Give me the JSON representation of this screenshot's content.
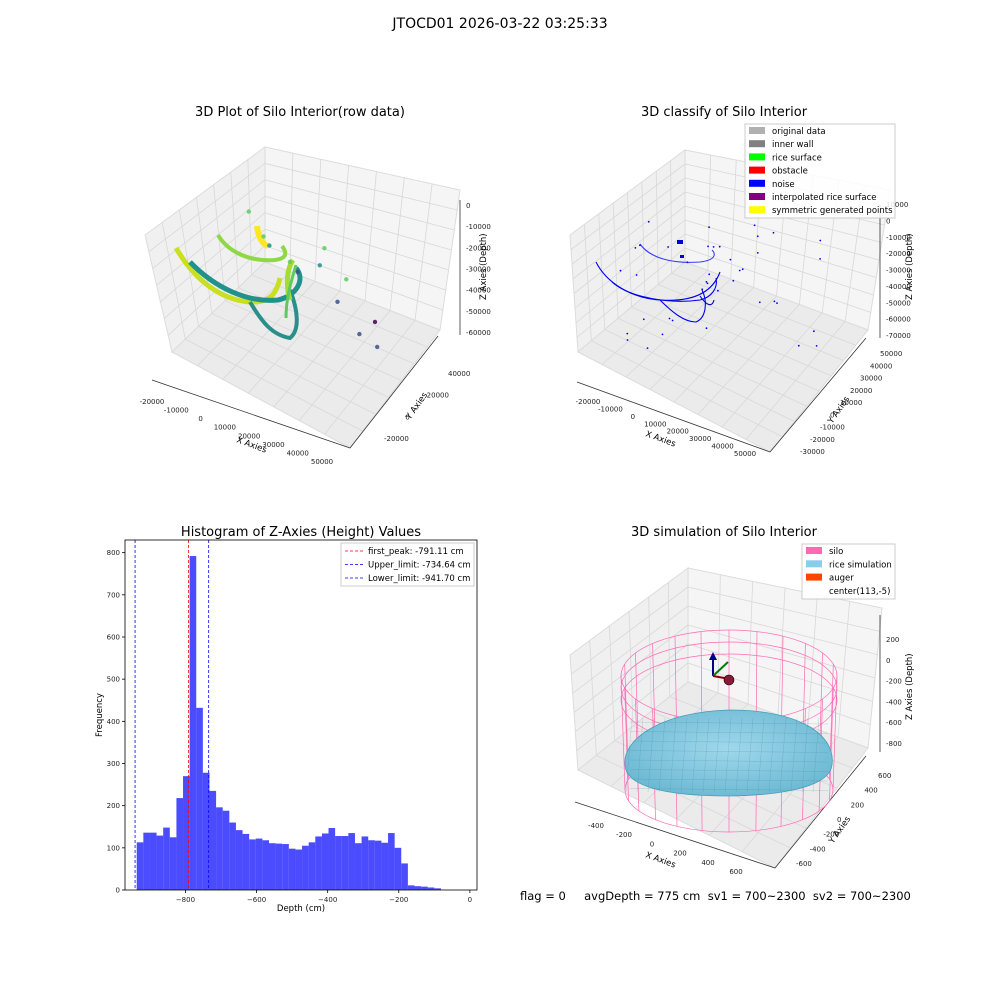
{
  "figure": {
    "suptitle": "JTOCD01 2026-03-22 03:25:33",
    "footer": "flag = 0     avgDepth = 775 cm  sv1 = 700~2300  sv2 = 700~2300"
  },
  "chart_data": [
    {
      "type": "scatter3d",
      "title": "3D Plot of Silo Interior(row data)",
      "xlabel": "X Axies",
      "ylabel": "Y Axies",
      "zlabel": "Z Axies (Depth)",
      "xticks": [
        "-20000",
        "-10000",
        "0",
        "10000",
        "20000",
        "30000",
        "40000",
        "50000"
      ],
      "yticks": [
        "-20000",
        "0",
        "20000",
        "40000"
      ],
      "zticks": [
        "0",
        "-10000",
        "-20000",
        "-30000",
        "-40000",
        "-50000",
        "-60000"
      ],
      "xlim": [
        -25000,
        55000
      ],
      "ylim": [
        -30000,
        50000
      ],
      "zlim": [
        -65000,
        3000
      ],
      "colormap": "viridis",
      "points": [
        {
          "x": -18000,
          "y": -5000,
          "z": -14000
        },
        {
          "x": -10000,
          "y": -8000,
          "z": -30000
        },
        {
          "x": 2000,
          "y": -10000,
          "z": -40000
        },
        {
          "x": 14000,
          "y": -6000,
          "z": -30000
        },
        {
          "x": 20000,
          "y": 2000,
          "z": -15000
        },
        {
          "x": -2000,
          "y": 14000,
          "z": -12000
        },
        {
          "x": 12000,
          "y": 18000,
          "z": -18000
        },
        {
          "x": 25000,
          "y": 0,
          "z": -42000
        },
        {
          "x": 35000,
          "y": 0,
          "z": -55000
        },
        {
          "x": 48000,
          "y": 10000,
          "z": -52000
        },
        {
          "x": 46000,
          "y": 35000,
          "z": -6000
        },
        {
          "x": 30000,
          "y": -25000,
          "z": -62000
        }
      ]
    },
    {
      "type": "scatter3d",
      "title": "3D classify of Silo Interior",
      "xlabel": "X Axies",
      "ylabel": "Y Axies",
      "zlabel": "Z Axies (Depth)",
      "xticks": [
        "-20000",
        "-10000",
        "0",
        "10000",
        "20000",
        "30000",
        "40000",
        "50000"
      ],
      "yticks": [
        "-30000",
        "-20000",
        "-10000",
        "0",
        "10000",
        "20000",
        "30000",
        "40000",
        "50000"
      ],
      "zticks": [
        "10000",
        "0",
        "-10000",
        "-20000",
        "-30000",
        "-40000",
        "-50000",
        "-60000",
        "-70000"
      ],
      "legend": [
        {
          "name": "original data",
          "color": "#b0b0b0"
        },
        {
          "name": "inner wall",
          "color": "#808080"
        },
        {
          "name": "rice surface",
          "color": "#00ff00"
        },
        {
          "name": "obstacle",
          "color": "#ff0000"
        },
        {
          "name": "noise",
          "color": "#0000ff"
        },
        {
          "name": "interpolated rice surface",
          "color": "#800080"
        },
        {
          "name": "symmetric generated points",
          "color": "#ffff00"
        }
      ],
      "legend_loc": "upper right",
      "series_color": "#0000ff"
    },
    {
      "type": "bar",
      "title": "Histogram of Z-Axies (Height) Values",
      "xlabel": "Depth (cm)",
      "ylabel": "Frequency",
      "xlim": [
        -970,
        20
      ],
      "ylim": [
        0,
        830
      ],
      "xticks": [
        -800,
        -600,
        -400,
        -200,
        0
      ],
      "yticks": [
        0,
        100,
        200,
        300,
        400,
        500,
        600,
        700,
        800
      ],
      "bin_start": -937,
      "bin_width": 18.6,
      "values": [
        113,
        136,
        136,
        129,
        148,
        125,
        218,
        270,
        792,
        432,
        278,
        235,
        196,
        188,
        160,
        142,
        133,
        120,
        122,
        118,
        111,
        110,
        109,
        98,
        96,
        105,
        113,
        127,
        134,
        147,
        128,
        128,
        135,
        111,
        127,
        118,
        117,
        112,
        135,
        100,
        63,
        11,
        9,
        8,
        6,
        4
      ],
      "bar_color": "#0000ff",
      "bar_alpha": 0.7,
      "vlines": [
        {
          "label": "first_peak: -791.11 cm",
          "x": -791.11,
          "color": "#ff0000"
        },
        {
          "label": "Upper_limit: -734.64 cm",
          "x": -734.64,
          "color": "#0000ff"
        },
        {
          "label": "Lower_limit: -941.70 cm",
          "x": -941.7,
          "color": "#0000ff"
        }
      ],
      "legend_loc": "upper right"
    },
    {
      "type": "surface3d",
      "title": "3D simulation of Silo Interior",
      "xlabel": "X Axies",
      "ylabel": "Y Axies",
      "zlabel": "Z Axies (Depth)",
      "xticks": [
        "-400",
        "-200",
        "0",
        "200",
        "400",
        "600"
      ],
      "yticks": [
        "-600",
        "-400",
        "-200",
        "0",
        "200",
        "400",
        "600"
      ],
      "zticks": [
        "200",
        "0",
        "-200",
        "-400",
        "-600",
        "-800"
      ],
      "legend": [
        {
          "name": "silo",
          "color": "#ff69b4"
        },
        {
          "name": "rice simulation",
          "color": "#87ceeb"
        },
        {
          "name": "auger",
          "color": "#ff4500"
        },
        {
          "name": "center(113,-5)",
          "color": "none"
        }
      ],
      "legend_loc": "upper right"
    }
  ]
}
